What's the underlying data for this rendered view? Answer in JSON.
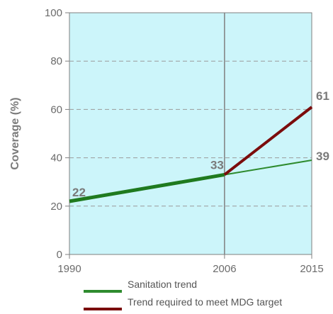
{
  "colors": {
    "plot_bg": "#ccf5fa",
    "sanitation": "#2e8b2e",
    "sanitation_bold": "#1f7a1f",
    "required": "#7b0c0c",
    "grid": "#9a9a9a",
    "axis": "#7f7f7f"
  },
  "chart_data": {
    "type": "line",
    "title": "",
    "xlabel": "",
    "ylabel": "Coverage (%)",
    "xlim": [
      1990,
      2015
    ],
    "ylim": [
      0,
      100
    ],
    "x_ticks": [
      "1990",
      "2006",
      "2015"
    ],
    "y_ticks": [
      "0",
      "20",
      "40",
      "60",
      "80",
      "100"
    ],
    "grid": "horizontal dashed",
    "legend_position": "bottom",
    "series": [
      {
        "name": "Sanitation trend",
        "x": [
          1990,
          2006,
          2015
        ],
        "y": [
          22,
          33,
          39
        ]
      },
      {
        "name": "Trend required to meet MDG target",
        "x": [
          2006,
          2015
        ],
        "y": [
          33,
          61
        ]
      }
    ],
    "data_labels": [
      {
        "x": 1990,
        "y": 22,
        "text": "22"
      },
      {
        "x": 2006,
        "y": 33,
        "text": "33"
      },
      {
        "x": 2015,
        "y": 61,
        "text": "61"
      },
      {
        "x": 2015,
        "y": 39,
        "text": "39"
      }
    ],
    "reference_line_x": 2006
  },
  "legend": [
    {
      "label": "Sanitation trend",
      "color": "#2e8b2e"
    },
    {
      "label": "Trend required to meet MDG target",
      "color": "#7b0c0c"
    }
  ]
}
